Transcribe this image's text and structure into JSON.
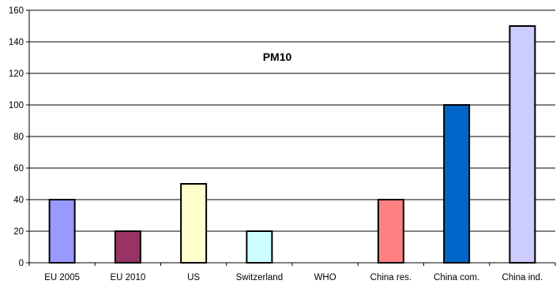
{
  "chart_data": {
    "type": "bar",
    "title": "PM10",
    "xlabel": "",
    "ylabel": "",
    "categories": [
      "EU 2005",
      "EU 2010",
      "US",
      "Switzerland",
      "WHO",
      "China res.",
      "China com.",
      "China ind."
    ],
    "values": [
      40,
      20,
      50,
      20,
      0,
      40,
      100,
      150
    ],
    "colors": [
      "#9999FF",
      "#993366",
      "#FFFFCC",
      "#CCFFFF",
      "#FFFFFF",
      "#FF8080",
      "#0066CC",
      "#CCCCFF"
    ],
    "ylim": [
      0,
      160
    ],
    "yticks": [
      0,
      20,
      40,
      60,
      80,
      100,
      120,
      140,
      160
    ],
    "grid": true,
    "legend": "none"
  }
}
